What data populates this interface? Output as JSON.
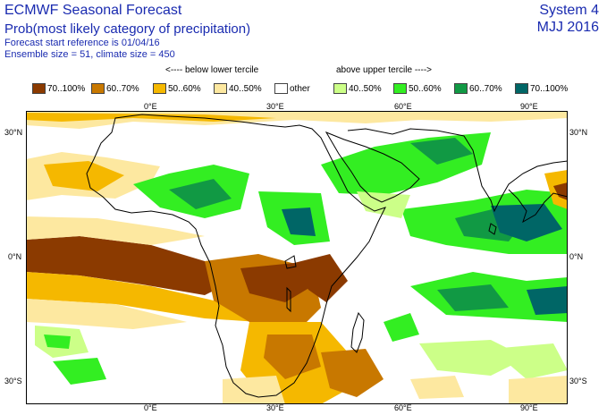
{
  "header": {
    "title": "ECMWF Seasonal Forecast",
    "subtitle": "Prob(most likely category of precipitation)",
    "start_reference": "Forecast start reference is 01/04/16",
    "ensemble": "Ensemble size = 51, climate size = 450",
    "system": "System 4",
    "period": "MJJ 2016"
  },
  "legend": {
    "below_header": "<---- below lower tercile",
    "above_header": "above upper tercile ---->",
    "items": [
      {
        "label": "70..100%",
        "color": "#8b3a00"
      },
      {
        "label": "60..70%",
        "color": "#c87800"
      },
      {
        "label": "50..60%",
        "color": "#f5b800"
      },
      {
        "label": "40..50%",
        "color": "#fde8a0"
      },
      {
        "label": "other",
        "color": "#ffffff"
      },
      {
        "label": "40..50%",
        "color": "#ccff88"
      },
      {
        "label": "50..60%",
        "color": "#33ee22"
      },
      {
        "label": "60..70%",
        "color": "#119944"
      },
      {
        "label": "70..100%",
        "color": "#006666"
      }
    ]
  },
  "axes": {
    "top": [
      "0°E",
      "30°E",
      "60°E",
      "90°E"
    ],
    "bottom": [
      "0°E",
      "30°E",
      "60°E",
      "90°E"
    ],
    "left": [
      "30°N",
      "0°N",
      "30°S"
    ],
    "right": [
      "30°N",
      "0°N",
      "30°S"
    ]
  }
}
